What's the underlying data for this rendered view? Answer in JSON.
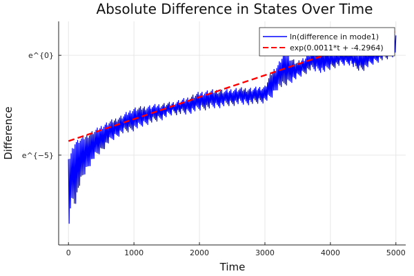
{
  "chart_data": {
    "type": "line",
    "title": "Absolute Difference in States Over Time",
    "xlabel": "Time",
    "ylabel": "Difference",
    "xlim": [
      -150,
      5150
    ],
    "ylim": [
      -9.5,
      1.7
    ],
    "x_ticks": [
      0,
      1000,
      2000,
      3000,
      4000,
      5000
    ],
    "x_tick_labels": [
      "0",
      "1000",
      "2000",
      "3000",
      "4000",
      "5000"
    ],
    "y_ticks": [
      -5,
      0
    ],
    "y_tick_labels": [
      "e^{−5}",
      "e^{0}"
    ],
    "y_scale": "log (natural exponent labels)",
    "grid": true,
    "legend_position": "top-right",
    "series": [
      {
        "name": "ln(difference in mode1)",
        "color": "#0000ff",
        "style": "solid",
        "envelope": {
          "x": [
            0,
            30,
            60,
            100,
            150,
            200,
            300,
            400,
            500,
            600,
            800,
            1000,
            1200,
            1400,
            1600,
            1800,
            2000,
            2200,
            2400,
            2600,
            2800,
            3000,
            3100,
            3200,
            3300,
            3400,
            3500,
            3700,
            3900,
            4100,
            4300,
            4400,
            4500,
            4700,
            4900,
            5000
          ],
          "upper": [
            -5.2,
            -4.9,
            -4.6,
            -4.3,
            -4.2,
            -4.1,
            -3.9,
            -3.7,
            -3.5,
            -3.3,
            -3.0,
            -2.6,
            -2.5,
            -2.4,
            -2.3,
            -2.1,
            -1.8,
            -1.7,
            -1.7,
            -1.6,
            -1.6,
            -1.5,
            -0.8,
            -0.4,
            0.2,
            -0.1,
            -0.3,
            0.2,
            0.3,
            0.2,
            0.3,
            0.1,
            0.3,
            0.4,
            0.6,
            1.2
          ],
          "lower": [
            -9.0,
            -7.7,
            -7.3,
            -7.6,
            -6.8,
            -6.3,
            -5.7,
            -5.2,
            -4.9,
            -4.5,
            -4.0,
            -3.8,
            -3.5,
            -3.3,
            -3.0,
            -3.0,
            -2.8,
            -2.7,
            -2.6,
            -2.5,
            -2.5,
            -2.4,
            -2.2,
            -1.7,
            -1.6,
            -1.4,
            -1.2,
            -0.8,
            -0.9,
            -0.6,
            -0.5,
            -0.8,
            -0.8,
            -0.4,
            -0.2,
            0.0
          ]
        }
      },
      {
        "name": "exp(0.0011*t + -4.2964)",
        "color": "#ff0000",
        "style": "dashed",
        "slope": 0.0011,
        "intercept": -4.2964,
        "x_range": [
          0,
          5000
        ]
      }
    ]
  }
}
